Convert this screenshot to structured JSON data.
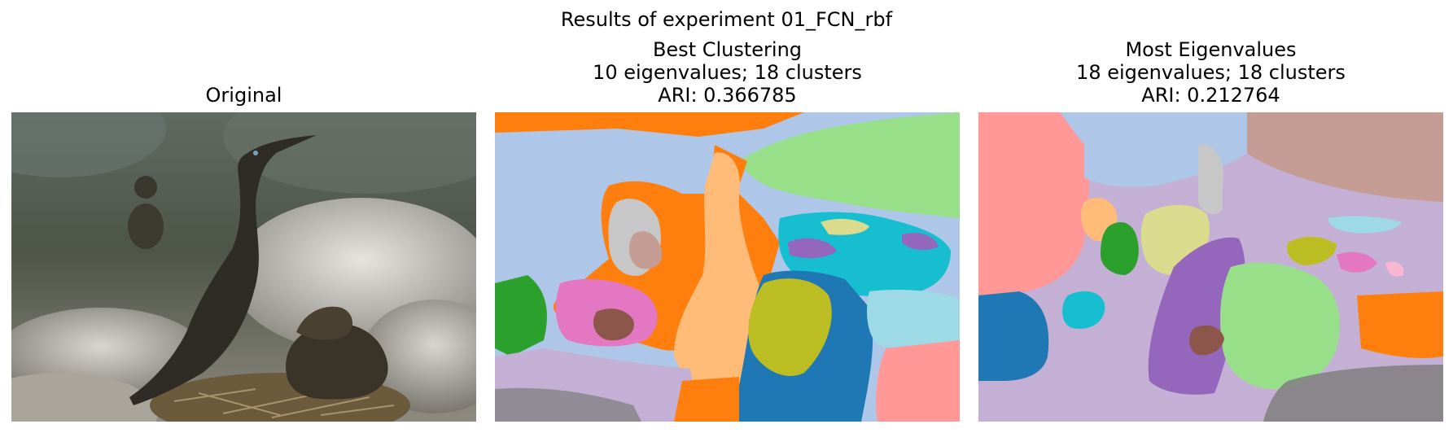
{
  "figure": {
    "suptitle": "Results of experiment 01_FCN_rbf"
  },
  "panels": [
    {
      "title_lines": [
        "Original"
      ]
    },
    {
      "title_lines": [
        "Best Clustering",
        "10 eigenvalues; 18 clusters",
        "ARI: 0.366785"
      ]
    },
    {
      "title_lines": [
        "Most Eigenvalues",
        "18 eigenvalues; 18 clusters",
        "ARI: 0.212764"
      ]
    }
  ],
  "colors": {
    "light_blue": "#aec7e8",
    "orange": "#ff7f0e",
    "light_green": "#98df8a",
    "green": "#2ca02c",
    "pink": "#e377c2",
    "brown": "#8c564b",
    "peach": "#ffbb78",
    "olive": "#bcbd22",
    "blue": "#1f77b4",
    "cyan": "#17becf",
    "light_cyan": "#9edae5",
    "purple": "#9467bd",
    "lavender": "#c5b0d5",
    "gray": "#7f7f7f",
    "light_gray": "#c7c7c7",
    "light_red": "#ff9896",
    "rosy_brown": "#c49c94",
    "khaki": "#dbdb8d",
    "light_pink": "#f7b6d2"
  }
}
